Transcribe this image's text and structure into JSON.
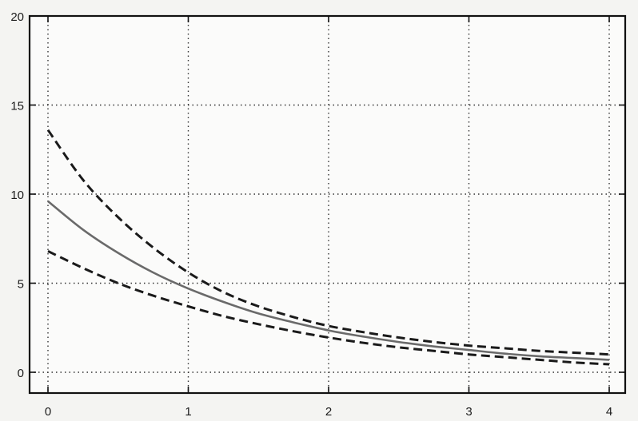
{
  "chart_data": {
    "type": "line",
    "title": "",
    "xlabel": "",
    "ylabel": "",
    "xlim": [
      0,
      4
    ],
    "ylim": [
      0,
      20
    ],
    "x_ticks": [
      0,
      1,
      2,
      3,
      4
    ],
    "y_ticks": [
      0,
      5,
      10,
      15,
      20
    ],
    "x_tick_labels": [
      "0",
      "1",
      "2",
      "3",
      "4"
    ],
    "y_tick_labels": [
      "0",
      "5",
      "10",
      "15",
      "20"
    ],
    "grid": true,
    "grid_style": "dotted",
    "legend": "none",
    "series": [
      {
        "style": "dashed",
        "color": "#1a1a1a",
        "x": [
          0,
          0.25,
          0.5,
          0.75,
          1,
          1.25,
          1.5,
          1.75,
          2,
          2.25,
          2.5,
          2.75,
          3,
          3.25,
          3.5,
          3.75,
          4
        ],
        "y": [
          13.6,
          10.8,
          8.7,
          7.0,
          5.6,
          4.5,
          3.7,
          3.1,
          2.6,
          2.25,
          1.95,
          1.7,
          1.5,
          1.35,
          1.2,
          1.1,
          1.0
        ]
      },
      {
        "style": "solid",
        "color": "#6a6a6a",
        "x": [
          0,
          0.25,
          0.5,
          0.75,
          1,
          1.25,
          1.5,
          1.75,
          2,
          2.25,
          2.5,
          2.75,
          3,
          3.25,
          3.5,
          3.75,
          4
        ],
        "y": [
          9.6,
          8.0,
          6.7,
          5.6,
          4.7,
          3.95,
          3.3,
          2.8,
          2.35,
          2.0,
          1.7,
          1.45,
          1.25,
          1.05,
          0.9,
          0.8,
          0.7
        ]
      },
      {
        "style": "dashed",
        "color": "#1a1a1a",
        "x": [
          0,
          0.25,
          0.5,
          0.75,
          1,
          1.25,
          1.5,
          1.75,
          2,
          2.25,
          2.5,
          2.75,
          3,
          3.25,
          3.5,
          3.75,
          4
        ],
        "y": [
          6.8,
          5.85,
          5.0,
          4.3,
          3.7,
          3.15,
          2.7,
          2.3,
          1.95,
          1.65,
          1.4,
          1.2,
          1.0,
          0.85,
          0.7,
          0.55,
          0.45
        ]
      }
    ]
  }
}
